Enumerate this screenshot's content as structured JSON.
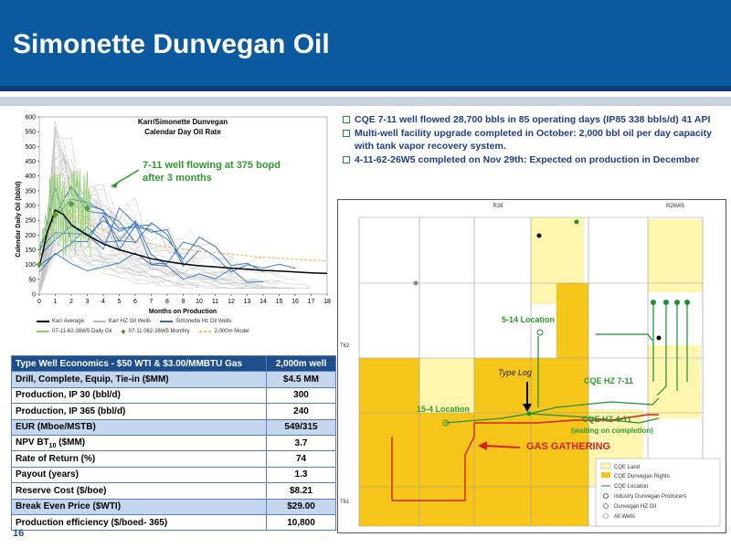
{
  "header": {
    "title": "Simonette Dunvegan Oil"
  },
  "page_number": "16",
  "bullets": [
    "CQE 7-11 well flowed 28,700 bbls in 85 operating days (IP85 338 bbls/d) 41 API",
    "Multi-well facility upgrade completed in October: 2,000 bbl oil per day capacity with tank vapor recovery system.",
    "4-11-62-26W5 completed on Nov 29th: Expected on production in December"
  ],
  "chart_data": {
    "type": "line",
    "title": "Karr/Simonette Dunvegan",
    "subtitle": "Calendar Day Oil Rate",
    "xlabel": "Months on Production",
    "ylabel": "Calendar Daily Oil (bbl/d)",
    "xlim": [
      0,
      18
    ],
    "ylim": [
      0,
      600
    ],
    "x_ticks": [
      "0",
      "1",
      "2",
      "3",
      "4",
      "5",
      "6",
      "7",
      "8",
      "9",
      "10",
      "11",
      "12",
      "13",
      "14",
      "15",
      "16",
      "17",
      "18"
    ],
    "y_ticks": [
      "0",
      "50",
      "100",
      "150",
      "200",
      "250",
      "300",
      "350",
      "400",
      "450",
      "500",
      "550",
      "600"
    ],
    "annotation": "7-11 well flowing at 375 bopd after 3 months",
    "annotation_lines": [
      "7-11 well flowing at 375 bopd",
      "after 3 months"
    ],
    "legend": [
      {
        "name": "Karr Average",
        "color": "#000000",
        "style": "solid"
      },
      {
        "name": "Karr HZ Oil Wells",
        "color": "#bbbbbb",
        "style": "solid"
      },
      {
        "name": "Simonette Hz Oil Wells",
        "color": "#2f6fbf",
        "style": "solid"
      },
      {
        "name": "07-11-62-26W5 Daily Oil",
        "color": "#8fd06a",
        "style": "solid"
      },
      {
        "name": "07-11 062-26W5 Monthly",
        "color": "#5a9a3a",
        "style": "marker"
      },
      {
        "name": "2,000m Model",
        "color": "#e8c060",
        "style": "dashed"
      }
    ],
    "series": [
      {
        "name": "Karr Average",
        "x": [
          0,
          0.5,
          1,
          1.5,
          2,
          3,
          4,
          5,
          6,
          7,
          8,
          9,
          10,
          11,
          12,
          13,
          14,
          15,
          16,
          17,
          18
        ],
        "values": [
          90,
          210,
          285,
          270,
          235,
          200,
          170,
          150,
          135,
          120,
          110,
          102,
          96,
          92,
          88,
          84,
          80,
          78,
          75,
          72,
          70
        ]
      },
      {
        "name": "2,000m Model",
        "x": [
          0,
          1,
          2,
          3,
          4,
          5,
          6,
          8,
          10,
          12,
          14,
          16,
          18
        ],
        "values": [
          120,
          280,
          270,
          240,
          215,
          195,
          180,
          160,
          145,
          135,
          125,
          118,
          112
        ]
      },
      {
        "name": "07-11 062-26W5 Monthly",
        "x": [
          0,
          1,
          2,
          3
        ],
        "values": [
          100,
          270,
          305,
          290
        ]
      }
    ]
  },
  "table": {
    "header": [
      "Type Well Economics - $50 WTI & $3.00/MMBTU Gas",
      "2,000m well"
    ],
    "rows": [
      [
        "Drill, Complete, Equip, Tie-in ($MM)",
        "$4.5 MM"
      ],
      [
        "Production, IP 30 (bbl/d)",
        "300"
      ],
      [
        "Production, IP 365 (bbl/d)",
        "240"
      ],
      [
        "EUR (Mboe/MSTB)",
        "549/315"
      ],
      [
        "NPV BT10 ($MM)",
        "3.7"
      ],
      [
        "Rate of Return (%)",
        "74"
      ],
      [
        "Payout (years)",
        "1.3"
      ],
      [
        "Reserve Cost ($/boe)",
        "$8.21"
      ],
      [
        "Break Even Price ($WTI)",
        "$29.00"
      ],
      [
        "Production efficiency ($/boed- 365)",
        "10,800"
      ]
    ],
    "npv_parts": {
      "pre": "NPV BT",
      "sub": "10",
      "post": " ($MM)"
    }
  },
  "map": {
    "range_labels": [
      "R26",
      "R26W5"
    ],
    "township_labels": [
      "T62",
      "T61"
    ],
    "labels": {
      "loc_514": "5-14 Location",
      "type_log": "Type Log",
      "cqe_hz_711": "CQE HZ 7-11",
      "loc_154": "15-4 Location",
      "cqe_hz_411": "CQE HZ 4-11",
      "waiting": "(waiting on completion)",
      "gas": "GAS GATHERING"
    },
    "legend": [
      "CQE Land",
      "CQE Dunvegan Rights",
      "CQE Location",
      "Industry Dunvegan Producers",
      "Dunvegan HZ Oil",
      "All Wells"
    ],
    "colors": {
      "land": "#fff7b0",
      "rights": "#f7c61a",
      "well_green": "#1f8f2f",
      "gas_red": "#d62020"
    }
  }
}
